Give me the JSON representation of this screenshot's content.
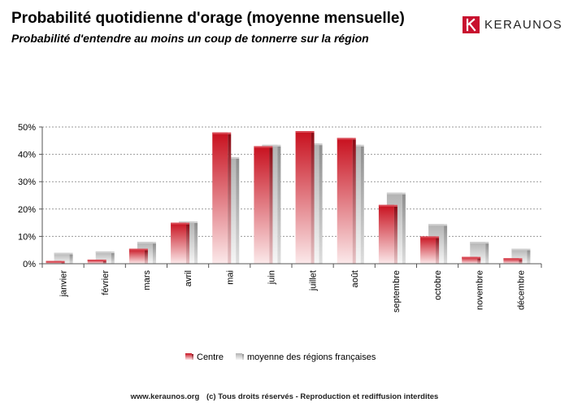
{
  "header": {
    "title": "Probabilité quotidienne d'orage (moyenne mensuelle)",
    "subtitle": "Probabilité d'entendre au moins un coup de tonnerre sur la région"
  },
  "logo": {
    "text": "KERAUNOS",
    "color": "#c8102e"
  },
  "footer": {
    "site": "www.keraunos.org",
    "rights": "(c) Tous droits réservés - Reproduction et rediffusion interdites"
  },
  "chart_data": {
    "type": "bar",
    "categories": [
      "janvier",
      "février",
      "mars",
      "avril",
      "mai",
      "juin",
      "juillet",
      "août",
      "septembre",
      "octobre",
      "novembre",
      "décembre"
    ],
    "series": [
      {
        "name": "Centre",
        "color": "#c8101e",
        "values": [
          1,
          1.5,
          5.5,
          15,
          48,
          43,
          48.5,
          46,
          21.5,
          10,
          2.5,
          2
        ]
      },
      {
        "name": "moyenne des régions françaises",
        "color": "#b4b4b4",
        "values": [
          4,
          4.5,
          8,
          15.5,
          39,
          43.5,
          44,
          43.5,
          26,
          14.5,
          8,
          5.5
        ]
      }
    ],
    "yticks": [
      "0%",
      "10%",
      "20%",
      "30%",
      "40%",
      "50%"
    ],
    "ylim": [
      0,
      50
    ],
    "grid": true,
    "legend": "bottom"
  }
}
